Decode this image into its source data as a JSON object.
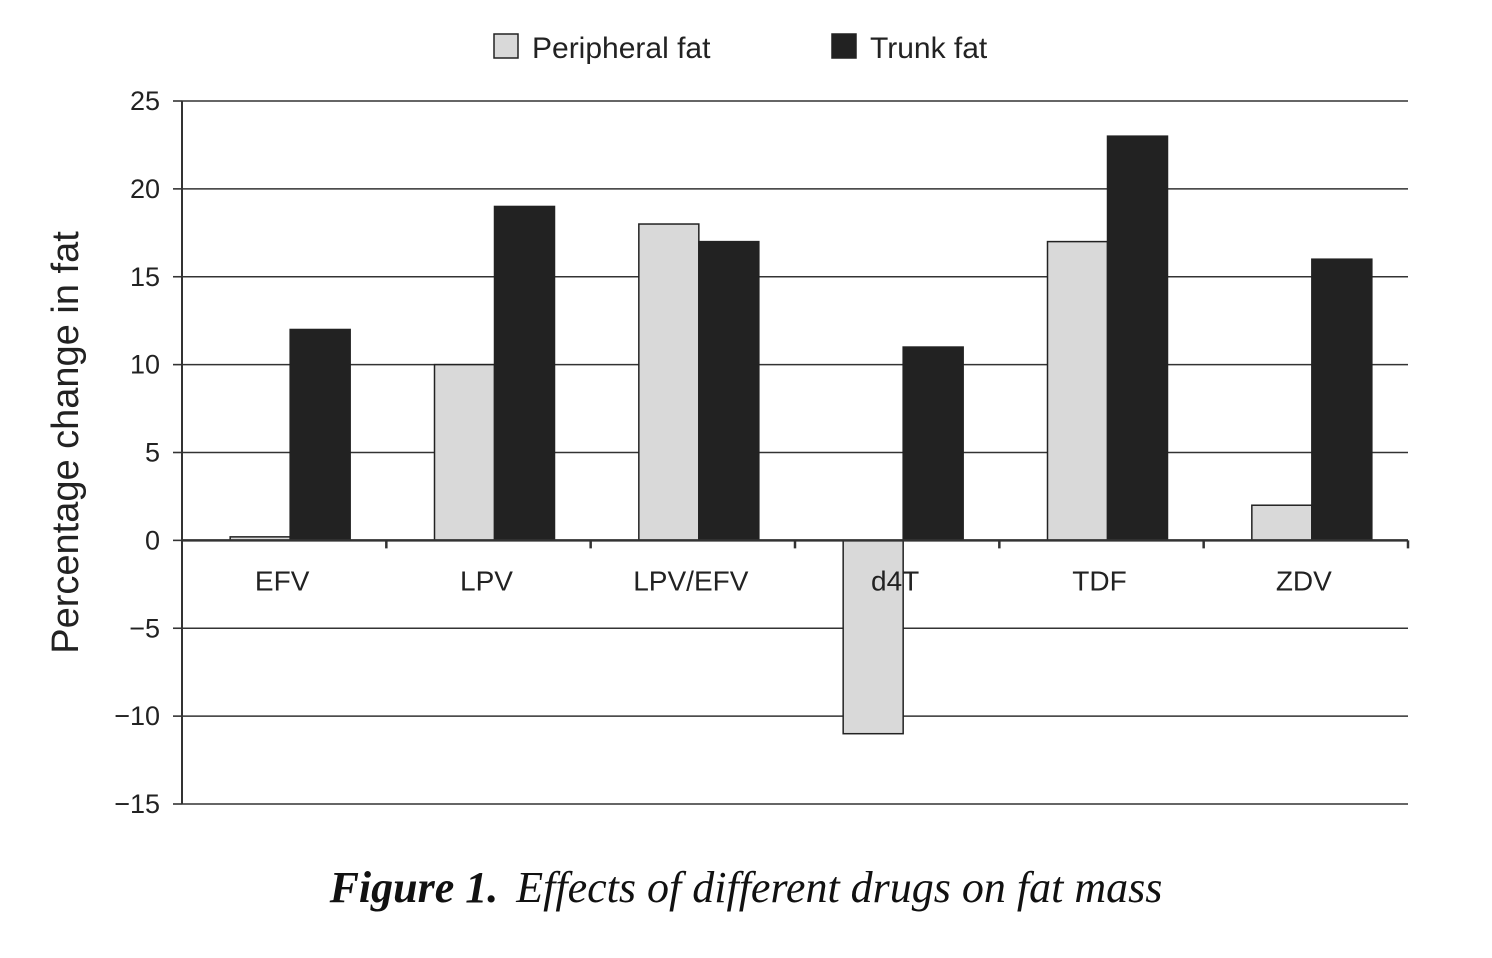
{
  "chart_data": {
    "type": "bar",
    "title": "",
    "xlabel": "",
    "ylabel": "Percentage change in fat",
    "ylim": [
      -15,
      25
    ],
    "yticks": [
      25,
      20,
      15,
      10,
      5,
      0,
      -5,
      -10,
      -15
    ],
    "ytick_labels": [
      "25",
      "20",
      "15",
      "10",
      "5",
      "0",
      "−5",
      "−10",
      "−15"
    ],
    "grid": true,
    "legend_position": "top-center",
    "categories": [
      "EFV",
      "LPV",
      "LPV/EFV",
      "d4T",
      "TDF",
      "ZDV"
    ],
    "series": [
      {
        "name": "Peripheral fat",
        "color": "#d9d9d9",
        "values": [
          0.2,
          10,
          18,
          -11,
          17,
          2
        ]
      },
      {
        "name": "Trunk fat",
        "color": "#222222",
        "values": [
          12,
          19,
          17,
          11,
          23,
          16
        ]
      }
    ]
  },
  "caption": {
    "label": "Figure 1.",
    "text": "Effects of different drugs on fat mass"
  }
}
